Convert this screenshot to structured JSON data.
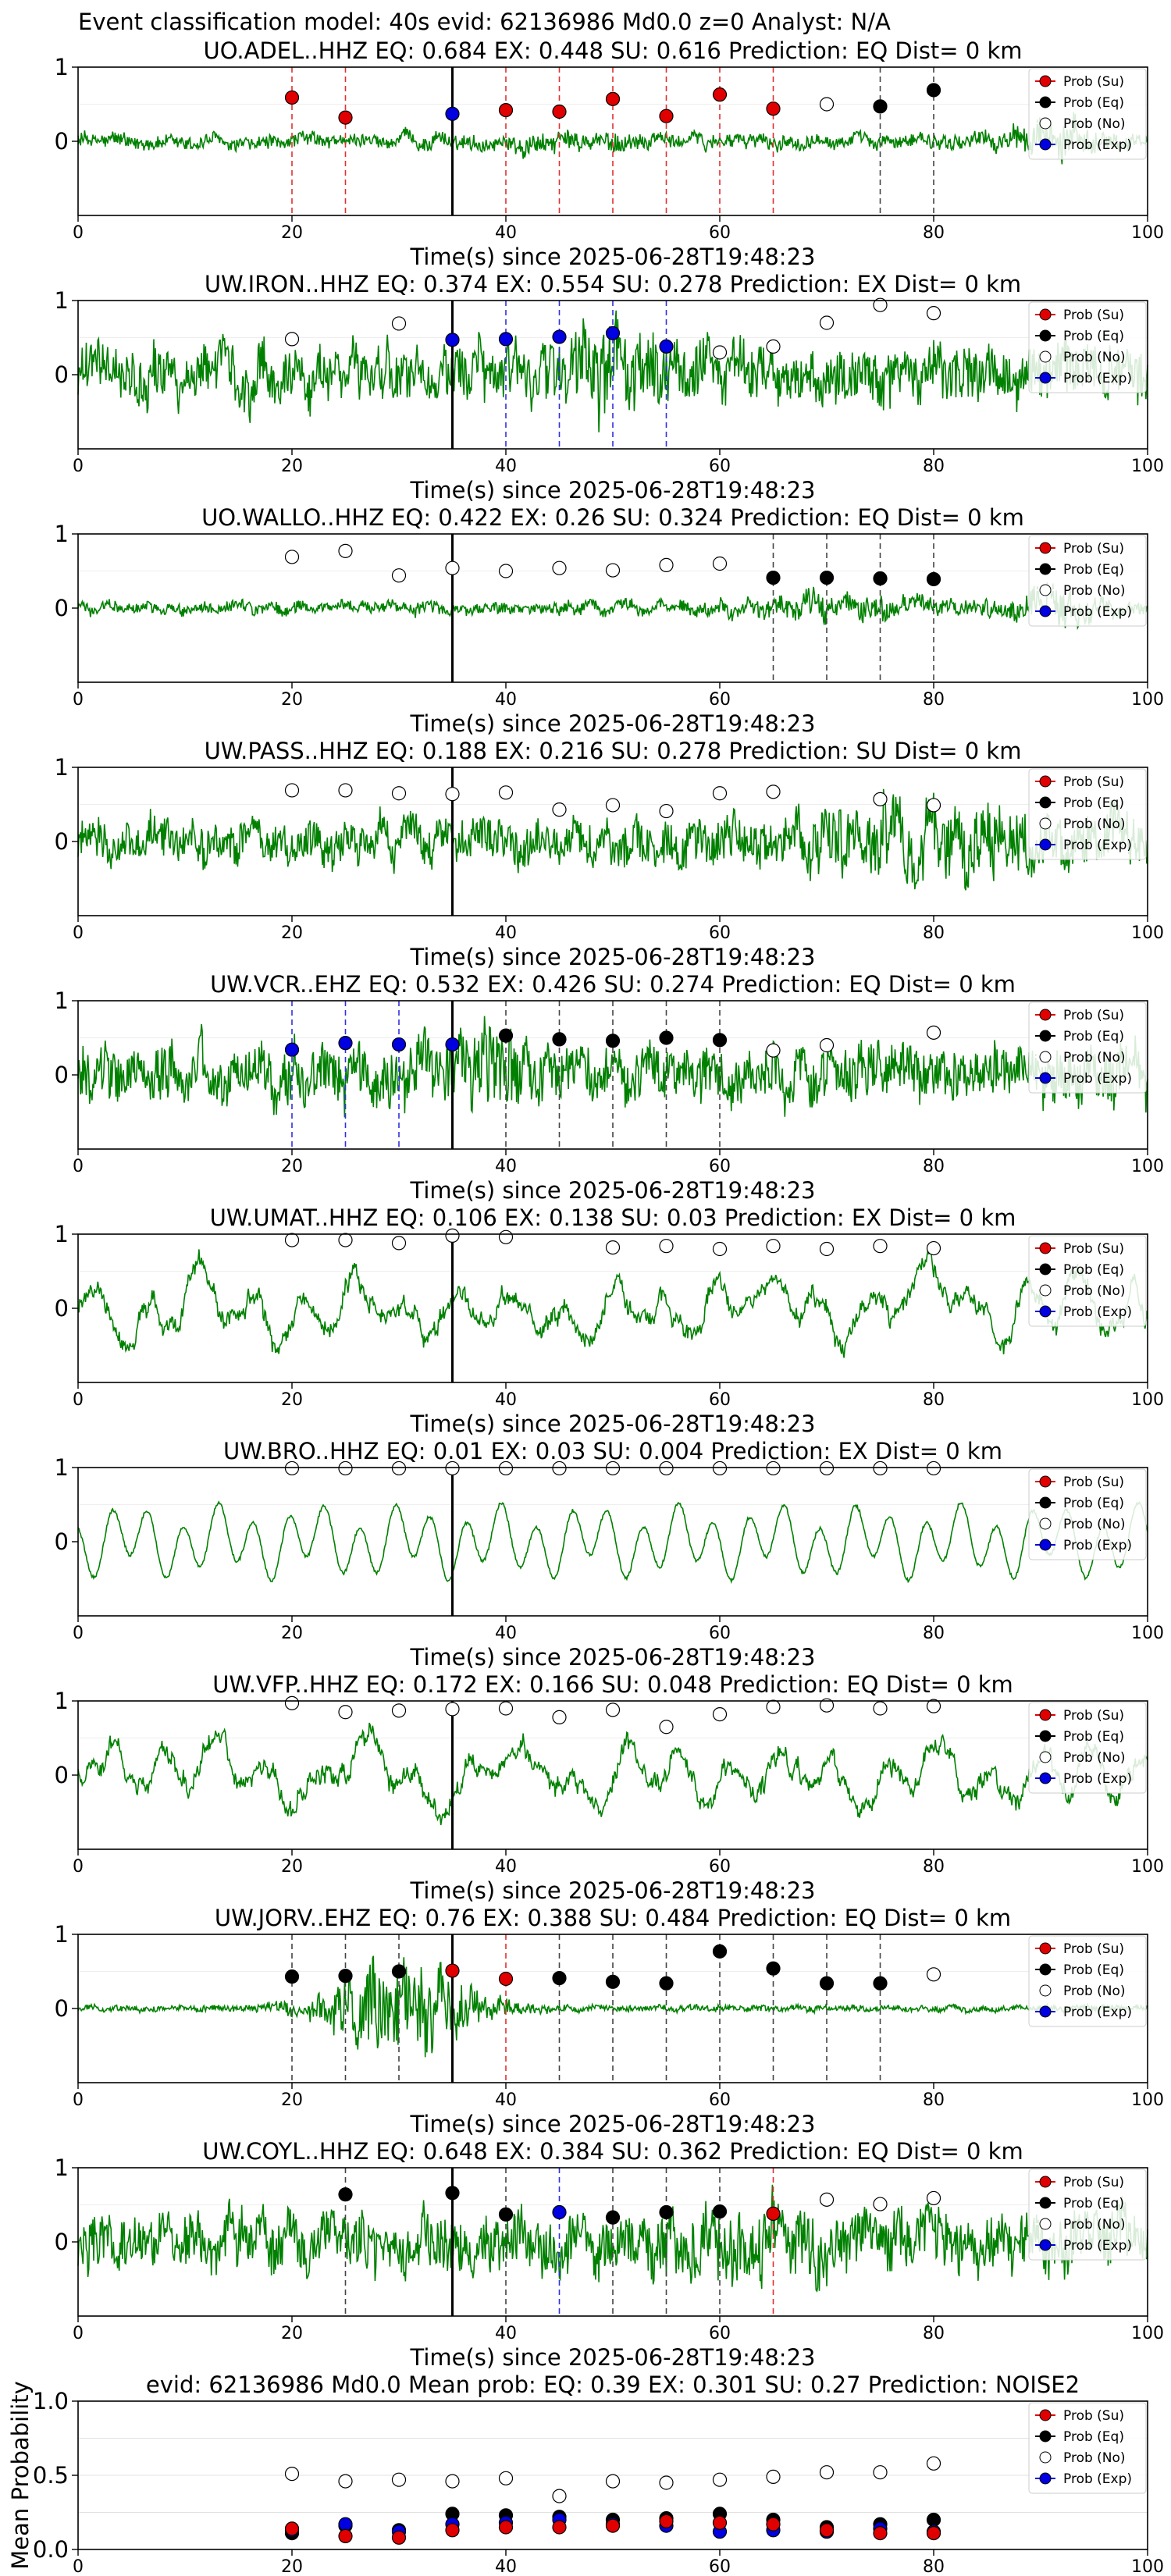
{
  "header": "Event classification model: 40s evid: 62136986 Md0.0 z=0 Analyst: N/A",
  "xlabel": "Time(s) since 2025-06-28T19:48:23",
  "x_ticks": [
    0,
    20,
    40,
    60,
    80,
    100
  ],
  "y_ticks": [
    0,
    1
  ],
  "legend": [
    "Prob (Su)",
    "Prob (Eq)",
    "Prob (No)",
    "Prob (Exp)"
  ],
  "colors": {
    "su": "#e00000",
    "eq": "#000000",
    "no": "#ffffff",
    "exp": "#0000e0",
    "trace": "#008000"
  },
  "windows": [
    20,
    25,
    30,
    35,
    40,
    45,
    50,
    55,
    60,
    65,
    70,
    75,
    80
  ],
  "chart_data": [
    {
      "type": "line",
      "title": "UO.ADEL..HHZ   EQ: 0.684  EX: 0.448  SU: 0.616   Prediction: EQ    Dist= 0 km",
      "xlim": [
        0,
        100
      ],
      "ylim": [
        -1,
        1
      ],
      "trace": {
        "amp": 0.12,
        "style": "noise",
        "bursts": [
          [
            46,
            8,
            1.5
          ],
          [
            91,
            4,
            2.8
          ]
        ]
      },
      "points": [
        {
          "x": 20,
          "y": 0.59,
          "cls": "su"
        },
        {
          "x": 25,
          "y": 0.32,
          "cls": "su"
        },
        {
          "x": 35,
          "y": 0.37,
          "cls": "exp"
        },
        {
          "x": 40,
          "y": 0.42,
          "cls": "su"
        },
        {
          "x": 45,
          "y": 0.4,
          "cls": "su"
        },
        {
          "x": 50,
          "y": 0.57,
          "cls": "su"
        },
        {
          "x": 55,
          "y": 0.34,
          "cls": "su"
        },
        {
          "x": 60,
          "y": 0.63,
          "cls": "su"
        },
        {
          "x": 65,
          "y": 0.44,
          "cls": "su"
        },
        {
          "x": 70,
          "y": 0.5,
          "cls": "no"
        },
        {
          "x": 75,
          "y": 0.47,
          "cls": "eq"
        },
        {
          "x": 80,
          "y": 0.69,
          "cls": "eq"
        }
      ]
    },
    {
      "type": "line",
      "title": "UW.IRON..HHZ   EQ: 0.374  EX: 0.554  SU: 0.278   Prediction: EX    Dist= 0 km",
      "xlim": [
        0,
        100
      ],
      "ylim": [
        -1,
        1
      ],
      "trace": {
        "amp": 0.45,
        "style": "noise",
        "bursts": [
          [
            50,
            6,
            1.6
          ]
        ]
      },
      "points": [
        {
          "x": 20,
          "y": 0.48,
          "cls": "no"
        },
        {
          "x": 30,
          "y": 0.69,
          "cls": "no"
        },
        {
          "x": 35,
          "y": 0.47,
          "cls": "exp"
        },
        {
          "x": 40,
          "y": 0.48,
          "cls": "exp"
        },
        {
          "x": 45,
          "y": 0.51,
          "cls": "exp"
        },
        {
          "x": 50,
          "y": 0.56,
          "cls": "exp"
        },
        {
          "x": 55,
          "y": 0.38,
          "cls": "exp"
        },
        {
          "x": 60,
          "y": 0.3,
          "cls": "no"
        },
        {
          "x": 65,
          "y": 0.38,
          "cls": "no"
        },
        {
          "x": 70,
          "y": 0.7,
          "cls": "no"
        },
        {
          "x": 75,
          "y": 0.94,
          "cls": "no"
        },
        {
          "x": 80,
          "y": 0.83,
          "cls": "no"
        }
      ]
    },
    {
      "type": "line",
      "title": "UO.WALLO..HHZ   EQ: 0.422  EX: 0.26  SU: 0.324   Prediction: EQ    Dist= 0 km",
      "xlim": [
        0,
        100
      ],
      "ylim": [
        -1,
        1
      ],
      "trace": {
        "amp": 0.1,
        "style": "noise",
        "bursts": [
          [
            72,
            10,
            2.2
          ],
          [
            91,
            4,
            3.2
          ]
        ]
      },
      "points": [
        {
          "x": 20,
          "y": 0.69,
          "cls": "no"
        },
        {
          "x": 25,
          "y": 0.77,
          "cls": "no"
        },
        {
          "x": 30,
          "y": 0.44,
          "cls": "no"
        },
        {
          "x": 35,
          "y": 0.54,
          "cls": "no"
        },
        {
          "x": 40,
          "y": 0.5,
          "cls": "no"
        },
        {
          "x": 45,
          "y": 0.54,
          "cls": "no"
        },
        {
          "x": 50,
          "y": 0.51,
          "cls": "no"
        },
        {
          "x": 55,
          "y": 0.58,
          "cls": "no"
        },
        {
          "x": 60,
          "y": 0.6,
          "cls": "no"
        },
        {
          "x": 65,
          "y": 0.41,
          "cls": "eq"
        },
        {
          "x": 70,
          "y": 0.41,
          "cls": "eq"
        },
        {
          "x": 75,
          "y": 0.4,
          "cls": "eq"
        },
        {
          "x": 80,
          "y": 0.39,
          "cls": "eq"
        }
      ]
    },
    {
      "type": "line",
      "title": "UW.PASS..HHZ   EQ: 0.188  EX: 0.216  SU: 0.278   Prediction: SU    Dist= 0 km",
      "xlim": [
        0,
        100
      ],
      "ylim": [
        -1,
        1
      ],
      "trace": {
        "amp": 0.35,
        "style": "noise",
        "bursts": [
          [
            80,
            14,
            1.8
          ]
        ]
      },
      "points": [
        {
          "x": 20,
          "y": 0.69,
          "cls": "no"
        },
        {
          "x": 25,
          "y": 0.69,
          "cls": "no"
        },
        {
          "x": 30,
          "y": 0.65,
          "cls": "no"
        },
        {
          "x": 35,
          "y": 0.64,
          "cls": "no"
        },
        {
          "x": 40,
          "y": 0.66,
          "cls": "no"
        },
        {
          "x": 45,
          "y": 0.43,
          "cls": "no"
        },
        {
          "x": 50,
          "y": 0.49,
          "cls": "no"
        },
        {
          "x": 55,
          "y": 0.41,
          "cls": "no"
        },
        {
          "x": 60,
          "y": 0.65,
          "cls": "no"
        },
        {
          "x": 65,
          "y": 0.67,
          "cls": "no"
        },
        {
          "x": 75,
          "y": 0.57,
          "cls": "no"
        },
        {
          "x": 80,
          "y": 0.49,
          "cls": "no"
        }
      ]
    },
    {
      "type": "line",
      "title": "UW.VCR..EHZ   EQ: 0.532  EX: 0.426  SU: 0.274   Prediction: EQ    Dist= 0 km",
      "xlim": [
        0,
        100
      ],
      "ylim": [
        -1,
        1
      ],
      "trace": {
        "amp": 0.45,
        "style": "noise",
        "bursts": [
          [
            38,
            4,
            1.7
          ]
        ]
      },
      "points": [
        {
          "x": 20,
          "y": 0.34,
          "cls": "exp"
        },
        {
          "x": 25,
          "y": 0.43,
          "cls": "exp"
        },
        {
          "x": 30,
          "y": 0.41,
          "cls": "exp"
        },
        {
          "x": 35,
          "y": 0.41,
          "cls": "exp"
        },
        {
          "x": 40,
          "y": 0.53,
          "cls": "eq"
        },
        {
          "x": 45,
          "y": 0.48,
          "cls": "eq"
        },
        {
          "x": 50,
          "y": 0.46,
          "cls": "eq"
        },
        {
          "x": 55,
          "y": 0.5,
          "cls": "eq"
        },
        {
          "x": 60,
          "y": 0.47,
          "cls": "eq"
        },
        {
          "x": 65,
          "y": 0.33,
          "cls": "no"
        },
        {
          "x": 70,
          "y": 0.4,
          "cls": "no"
        },
        {
          "x": 80,
          "y": 0.57,
          "cls": "no"
        }
      ]
    },
    {
      "type": "line",
      "title": "UW.UMAT..HHZ   EQ: 0.106  EX: 0.138  SU: 0.03   Prediction: EX    Dist= 0 km",
      "xlim": [
        0,
        100
      ],
      "ylim": [
        -1,
        1
      ],
      "trace": {
        "amp": 0.55,
        "style": "wave",
        "bursts": []
      },
      "points": [
        {
          "x": 20,
          "y": 0.92,
          "cls": "no"
        },
        {
          "x": 25,
          "y": 0.92,
          "cls": "no"
        },
        {
          "x": 30,
          "y": 0.88,
          "cls": "no"
        },
        {
          "x": 35,
          "y": 0.98,
          "cls": "no"
        },
        {
          "x": 40,
          "y": 0.96,
          "cls": "no"
        },
        {
          "x": 50,
          "y": 0.82,
          "cls": "no"
        },
        {
          "x": 55,
          "y": 0.84,
          "cls": "no"
        },
        {
          "x": 60,
          "y": 0.8,
          "cls": "no"
        },
        {
          "x": 65,
          "y": 0.84,
          "cls": "no"
        },
        {
          "x": 70,
          "y": 0.8,
          "cls": "no"
        },
        {
          "x": 75,
          "y": 0.84,
          "cls": "no"
        },
        {
          "x": 80,
          "y": 0.81,
          "cls": "no"
        }
      ]
    },
    {
      "type": "line",
      "title": "UW.BRO..HHZ   EQ: 0.01  EX: 0.03  SU: 0.004   Prediction: EX    Dist= 0 km",
      "xlim": [
        0,
        100
      ],
      "ylim": [
        -1,
        1
      ],
      "trace": {
        "amp": 0.6,
        "style": "smooth",
        "bursts": []
      },
      "points": [
        {
          "x": 20,
          "y": 0.99,
          "cls": "no"
        },
        {
          "x": 25,
          "y": 0.99,
          "cls": "no"
        },
        {
          "x": 30,
          "y": 0.99,
          "cls": "no"
        },
        {
          "x": 35,
          "y": 0.99,
          "cls": "no"
        },
        {
          "x": 40,
          "y": 0.99,
          "cls": "no"
        },
        {
          "x": 45,
          "y": 0.99,
          "cls": "no"
        },
        {
          "x": 50,
          "y": 0.99,
          "cls": "no"
        },
        {
          "x": 55,
          "y": 0.99,
          "cls": "no"
        },
        {
          "x": 60,
          "y": 0.99,
          "cls": "no"
        },
        {
          "x": 65,
          "y": 0.99,
          "cls": "no"
        },
        {
          "x": 70,
          "y": 0.99,
          "cls": "no"
        },
        {
          "x": 75,
          "y": 0.99,
          "cls": "no"
        },
        {
          "x": 80,
          "y": 0.99,
          "cls": "no"
        }
      ]
    },
    {
      "type": "line",
      "title": "UW.VFP..HHZ   EQ: 0.172  EX: 0.166  SU: 0.048   Prediction: EQ    Dist= 0 km",
      "xlim": [
        0,
        100
      ],
      "ylim": [
        -1,
        1
      ],
      "trace": {
        "amp": 0.55,
        "style": "wave",
        "bursts": []
      },
      "points": [
        {
          "x": 20,
          "y": 0.97,
          "cls": "no"
        },
        {
          "x": 25,
          "y": 0.85,
          "cls": "no"
        },
        {
          "x": 30,
          "y": 0.87,
          "cls": "no"
        },
        {
          "x": 35,
          "y": 0.89,
          "cls": "no"
        },
        {
          "x": 40,
          "y": 0.9,
          "cls": "no"
        },
        {
          "x": 45,
          "y": 0.78,
          "cls": "no"
        },
        {
          "x": 50,
          "y": 0.88,
          "cls": "no"
        },
        {
          "x": 55,
          "y": 0.65,
          "cls": "no"
        },
        {
          "x": 60,
          "y": 0.82,
          "cls": "no"
        },
        {
          "x": 65,
          "y": 0.92,
          "cls": "no"
        },
        {
          "x": 70,
          "y": 0.94,
          "cls": "no"
        },
        {
          "x": 75,
          "y": 0.9,
          "cls": "no"
        },
        {
          "x": 80,
          "y": 0.93,
          "cls": "no"
        }
      ]
    },
    {
      "type": "line",
      "title": "UW.JORV..EHZ   EQ: 0.76  EX: 0.388  SU: 0.484   Prediction: EQ    Dist= 0 km",
      "xlim": [
        0,
        100
      ],
      "ylim": [
        -1,
        1
      ],
      "trace": {
        "amp": 0.05,
        "style": "noise",
        "bursts": [
          [
            30,
            7,
            16
          ]
        ]
      },
      "points": [
        {
          "x": 20,
          "y": 0.43,
          "cls": "eq"
        },
        {
          "x": 25,
          "y": 0.44,
          "cls": "eq"
        },
        {
          "x": 30,
          "y": 0.5,
          "cls": "eq"
        },
        {
          "x": 35,
          "y": 0.51,
          "cls": "su"
        },
        {
          "x": 40,
          "y": 0.4,
          "cls": "su"
        },
        {
          "x": 45,
          "y": 0.41,
          "cls": "eq"
        },
        {
          "x": 50,
          "y": 0.36,
          "cls": "eq"
        },
        {
          "x": 55,
          "y": 0.34,
          "cls": "eq"
        },
        {
          "x": 60,
          "y": 0.77,
          "cls": "eq"
        },
        {
          "x": 65,
          "y": 0.54,
          "cls": "eq"
        },
        {
          "x": 70,
          "y": 0.34,
          "cls": "eq"
        },
        {
          "x": 75,
          "y": 0.34,
          "cls": "eq"
        },
        {
          "x": 80,
          "y": 0.46,
          "cls": "no"
        }
      ]
    },
    {
      "type": "line",
      "title": "UW.COYL..HHZ   EQ: 0.648  EX: 0.384  SU: 0.362   Prediction: EQ    Dist= 0 km",
      "xlim": [
        0,
        100
      ],
      "ylim": [
        -1,
        1
      ],
      "trace": {
        "amp": 0.45,
        "style": "noise",
        "bursts": [
          [
            62,
            8,
            1.4
          ]
        ]
      },
      "points": [
        {
          "x": 25,
          "y": 0.64,
          "cls": "eq"
        },
        {
          "x": 35,
          "y": 0.66,
          "cls": "eq"
        },
        {
          "x": 40,
          "y": 0.37,
          "cls": "eq"
        },
        {
          "x": 45,
          "y": 0.4,
          "cls": "exp"
        },
        {
          "x": 50,
          "y": 0.33,
          "cls": "eq"
        },
        {
          "x": 55,
          "y": 0.4,
          "cls": "eq"
        },
        {
          "x": 60,
          "y": 0.41,
          "cls": "eq"
        },
        {
          "x": 65,
          "y": 0.38,
          "cls": "su"
        },
        {
          "x": 70,
          "y": 0.57,
          "cls": "no"
        },
        {
          "x": 75,
          "y": 0.51,
          "cls": "no"
        },
        {
          "x": 80,
          "y": 0.59,
          "cls": "no"
        }
      ]
    },
    {
      "type": "scatter",
      "title": "evid: 62136986  Md0.0   Mean prob:   EQ: 0.39  EX: 0.301  SU: 0.27   Prediction: NOISE2",
      "ylabel": "Mean Probability",
      "xlim": [
        0,
        100
      ],
      "ylim": [
        0,
        1
      ],
      "y_ticks": [
        0.0,
        0.5,
        1.0
      ],
      "x": [
        20,
        25,
        30,
        35,
        40,
        45,
        50,
        55,
        60,
        65,
        70,
        75,
        80
      ],
      "series": [
        {
          "cls": "no",
          "values": [
            0.51,
            0.46,
            0.47,
            0.46,
            0.48,
            0.36,
            0.46,
            0.45,
            0.47,
            0.49,
            0.52,
            0.52,
            0.58
          ]
        },
        {
          "cls": "eq",
          "values": [
            0.11,
            0.16,
            0.13,
            0.24,
            0.23,
            0.22,
            0.2,
            0.21,
            0.24,
            0.2,
            0.15,
            0.17,
            0.2
          ]
        },
        {
          "cls": "exp",
          "values": [
            0.13,
            0.17,
            0.12,
            0.17,
            0.18,
            0.2,
            0.17,
            0.16,
            0.12,
            0.13,
            0.12,
            0.14,
            0.12
          ]
        },
        {
          "cls": "su",
          "values": [
            0.14,
            0.09,
            0.08,
            0.13,
            0.15,
            0.15,
            0.16,
            0.19,
            0.18,
            0.17,
            0.13,
            0.11,
            0.11
          ]
        }
      ]
    }
  ]
}
